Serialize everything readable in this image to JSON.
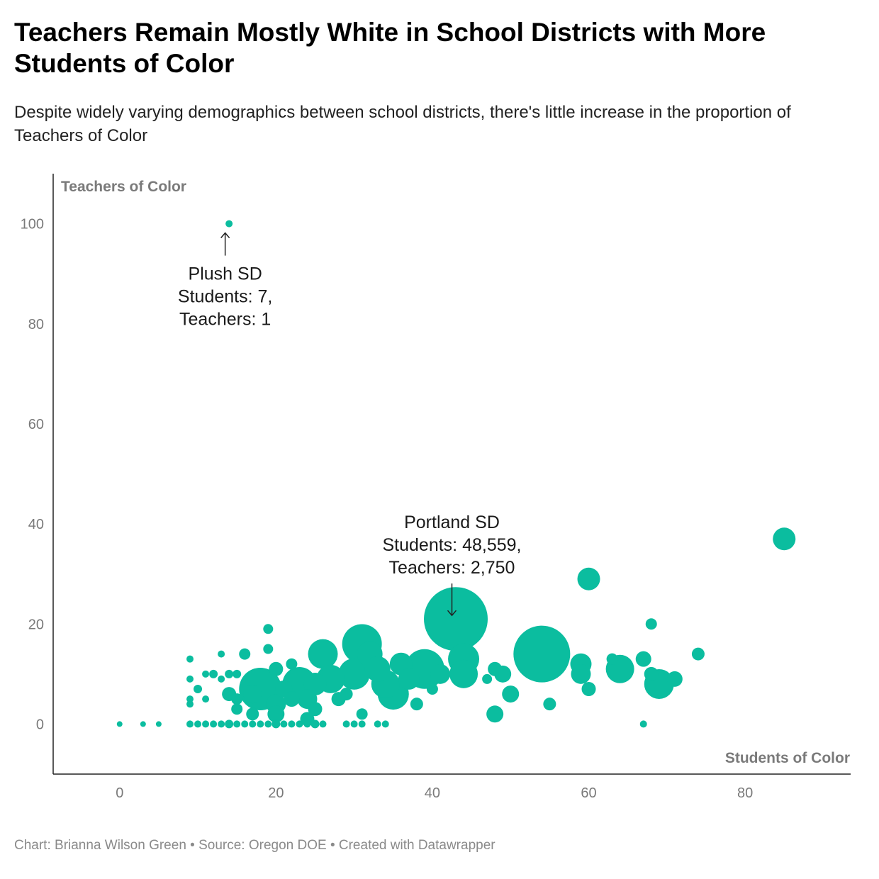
{
  "title": "Teachers Remain Mostly White in School Districts with More Students of Color",
  "subtitle": "Despite widely varying demographics between school districts, there's little increase in the proportion of Teachers of Color",
  "footer": "Chart: Brianna Wilson Green • Source: Oregon DOE • Created with Datawrapper",
  "colors": {
    "dot": "#0bbd9f",
    "axis": "#222222",
    "muted": "#7a7a7a"
  },
  "chart_data": {
    "type": "scatter",
    "xlabel": "Students of Color",
    "ylabel": "Teachers of Color",
    "xlim": [
      -8.5,
      93.5
    ],
    "ylim": [
      -10,
      110
    ],
    "xticks": [
      0,
      20,
      40,
      60,
      80
    ],
    "yticks": [
      0,
      20,
      40,
      60,
      80,
      100
    ],
    "grid": false,
    "legend": "none",
    "size_encoding": "bubble area proportional to district size",
    "points": [
      {
        "x": 0,
        "y": 0,
        "size": 4
      },
      {
        "x": 3,
        "y": 0,
        "size": 4
      },
      {
        "x": 5,
        "y": 0,
        "size": 4
      },
      {
        "x": 9,
        "y": 0,
        "size": 5
      },
      {
        "x": 10,
        "y": 0,
        "size": 5
      },
      {
        "x": 11,
        "y": 0,
        "size": 5
      },
      {
        "x": 12,
        "y": 0,
        "size": 5
      },
      {
        "x": 13,
        "y": 0,
        "size": 5
      },
      {
        "x": 14,
        "y": 0,
        "size": 6
      },
      {
        "x": 15,
        "y": 0,
        "size": 5
      },
      {
        "x": 16,
        "y": 0,
        "size": 5
      },
      {
        "x": 17,
        "y": 0,
        "size": 5
      },
      {
        "x": 18,
        "y": 0,
        "size": 5
      },
      {
        "x": 19,
        "y": 0,
        "size": 5
      },
      {
        "x": 20,
        "y": 0,
        "size": 6
      },
      {
        "x": 21,
        "y": 0,
        "size": 5
      },
      {
        "x": 22,
        "y": 0,
        "size": 5
      },
      {
        "x": 23,
        "y": 0,
        "size": 5
      },
      {
        "x": 24,
        "y": 0,
        "size": 5
      },
      {
        "x": 25,
        "y": 0,
        "size": 6
      },
      {
        "x": 26,
        "y": 0,
        "size": 5
      },
      {
        "x": 29,
        "y": 0,
        "size": 5
      },
      {
        "x": 30,
        "y": 0,
        "size": 5
      },
      {
        "x": 31,
        "y": 0,
        "size": 5
      },
      {
        "x": 33,
        "y": 0,
        "size": 5
      },
      {
        "x": 34,
        "y": 0,
        "size": 5
      },
      {
        "x": 67,
        "y": 0,
        "size": 5
      },
      {
        "x": 9,
        "y": 13,
        "size": 5
      },
      {
        "x": 9,
        "y": 9,
        "size": 5
      },
      {
        "x": 9,
        "y": 5,
        "size": 5
      },
      {
        "x": 9,
        "y": 4,
        "size": 5
      },
      {
        "x": 10,
        "y": 7,
        "size": 6
      },
      {
        "x": 11,
        "y": 10,
        "size": 5
      },
      {
        "x": 12,
        "y": 10,
        "size": 6
      },
      {
        "x": 13,
        "y": 14,
        "size": 5
      },
      {
        "x": 14,
        "y": 10,
        "size": 6
      },
      {
        "x": 15,
        "y": 10,
        "size": 6
      },
      {
        "x": 11,
        "y": 5,
        "size": 5
      },
      {
        "x": 13,
        "y": 9,
        "size": 5
      },
      {
        "x": 14,
        "y": 6,
        "size": 10
      },
      {
        "x": 15,
        "y": 3,
        "size": 8
      },
      {
        "x": 15,
        "y": 5,
        "size": 8
      },
      {
        "x": 16,
        "y": 14,
        "size": 8
      },
      {
        "x": 17,
        "y": 6,
        "size": 13
      },
      {
        "x": 17,
        "y": 2,
        "size": 9
      },
      {
        "x": 18,
        "y": 7,
        "size": 30
      },
      {
        "x": 19,
        "y": 19,
        "size": 7
      },
      {
        "x": 19,
        "y": 15,
        "size": 7
      },
      {
        "x": 20,
        "y": 11,
        "size": 10
      },
      {
        "x": 20,
        "y": 4,
        "size": 14
      },
      {
        "x": 20,
        "y": 2,
        "size": 12
      },
      {
        "x": 21,
        "y": 7,
        "size": 12
      },
      {
        "x": 22,
        "y": 12,
        "size": 8
      },
      {
        "x": 22,
        "y": 5,
        "size": 11
      },
      {
        "x": 23,
        "y": 8,
        "size": 24
      },
      {
        "x": 24,
        "y": 5,
        "size": 14
      },
      {
        "x": 24,
        "y": 1,
        "size": 10
      },
      {
        "x": 25,
        "y": 3,
        "size": 10
      },
      {
        "x": 25,
        "y": 8,
        "size": 16
      },
      {
        "x": 26,
        "y": 14,
        "size": 21
      },
      {
        "x": 27,
        "y": 9,
        "size": 20
      },
      {
        "x": 28,
        "y": 5,
        "size": 10
      },
      {
        "x": 29,
        "y": 6,
        "size": 9
      },
      {
        "x": 30,
        "y": 10,
        "size": 22
      },
      {
        "x": 31,
        "y": 16,
        "size": 28
      },
      {
        "x": 31,
        "y": 2,
        "size": 8
      },
      {
        "x": 32,
        "y": 14,
        "size": 18
      },
      {
        "x": 33,
        "y": 11,
        "size": 18
      },
      {
        "x": 34,
        "y": 8,
        "size": 20
      },
      {
        "x": 35,
        "y": 6,
        "size": 22
      },
      {
        "x": 36,
        "y": 12,
        "size": 16
      },
      {
        "x": 37,
        "y": 9,
        "size": 15
      },
      {
        "x": 38,
        "y": 4,
        "size": 9
      },
      {
        "x": 39,
        "y": 11,
        "size": 28
      },
      {
        "x": 40,
        "y": 7,
        "size": 8
      },
      {
        "x": 41,
        "y": 10,
        "size": 14
      },
      {
        "x": 43,
        "y": 21,
        "size": 45
      },
      {
        "x": 44,
        "y": 13,
        "size": 22
      },
      {
        "x": 44,
        "y": 10,
        "size": 20
      },
      {
        "x": 47,
        "y": 9,
        "size": 7
      },
      {
        "x": 48,
        "y": 11,
        "size": 10
      },
      {
        "x": 48,
        "y": 2,
        "size": 12
      },
      {
        "x": 49,
        "y": 10,
        "size": 12
      },
      {
        "x": 50,
        "y": 6,
        "size": 12
      },
      {
        "x": 54,
        "y": 14,
        "size": 40
      },
      {
        "x": 55,
        "y": 4,
        "size": 9
      },
      {
        "x": 59,
        "y": 12,
        "size": 15
      },
      {
        "x": 59,
        "y": 10,
        "size": 14
      },
      {
        "x": 60,
        "y": 7,
        "size": 10
      },
      {
        "x": 60,
        "y": 29,
        "size": 16
      },
      {
        "x": 63,
        "y": 13,
        "size": 8
      },
      {
        "x": 64,
        "y": 11,
        "size": 20
      },
      {
        "x": 67,
        "y": 13,
        "size": 11
      },
      {
        "x": 68,
        "y": 20,
        "size": 8
      },
      {
        "x": 68,
        "y": 10,
        "size": 10
      },
      {
        "x": 69,
        "y": 8,
        "size": 21
      },
      {
        "x": 71,
        "y": 9,
        "size": 11
      },
      {
        "x": 74,
        "y": 14,
        "size": 9
      },
      {
        "x": 85,
        "y": 37,
        "size": 16
      },
      {
        "x": 14,
        "y": 100,
        "size": 5
      }
    ],
    "annotations": [
      {
        "x": 13.5,
        "y": 100,
        "direction": "up",
        "lines": [
          "Plush SD",
          "Students: 7,",
          "Teachers: 1"
        ]
      },
      {
        "x": 42.5,
        "y": 21,
        "direction": "down",
        "lines": [
          "Portland SD",
          "Students: 48,559,",
          "Teachers: 2,750"
        ]
      }
    ]
  }
}
